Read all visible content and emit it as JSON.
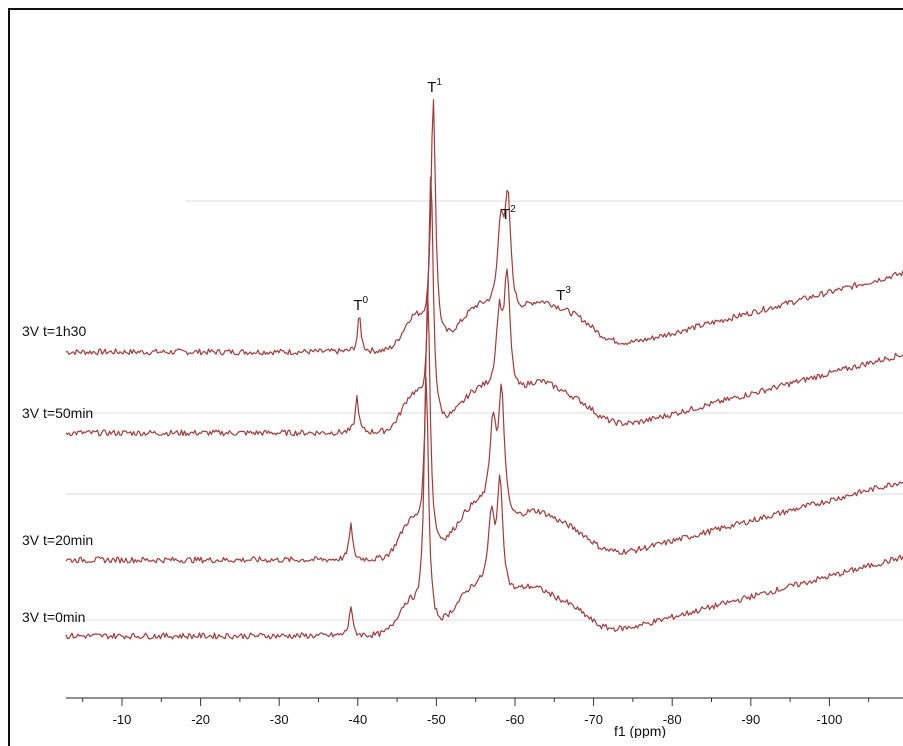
{
  "chart_data": {
    "type": "line",
    "title": "",
    "xlabel": "f1 (ppm)",
    "ylabel": "",
    "xlim": [
      -3,
      -108
    ],
    "x_ticks": [
      -10,
      -20,
      -30,
      -40,
      -50,
      -60,
      -70,
      -80,
      -90,
      -100
    ],
    "x_tick_labels": [
      "-10",
      "-20",
      "-30",
      "-40",
      "-50",
      "-60",
      "-70",
      "-80",
      "-90",
      "-100"
    ],
    "grid": false,
    "legend": "none",
    "line_color": "#a03c3c",
    "series": [
      {
        "name": "3V t=1h30",
        "shift": -0.9,
        "baseline_start": 0.0,
        "baseline_slope": 0.0,
        "peaks": [
          {
            "x": -40.2,
            "h": 36,
            "w": 0.25
          },
          {
            "x": -49.6,
            "h": 245,
            "w": 0.35
          },
          {
            "x": -58.2,
            "h": 90,
            "w": 0.5
          },
          {
            "x": -59.1,
            "h": 110,
            "w": 0.45
          }
        ],
        "humps": [
          {
            "x": -47.2,
            "h": 32,
            "w": 1.4
          },
          {
            "x": -55.5,
            "h": 42,
            "w": 2.5
          },
          {
            "x": -62.5,
            "h": 38,
            "w": 2.5
          },
          {
            "x": -67.5,
            "h": 32,
            "w": 3.0
          }
        ]
      },
      {
        "name": "3V t=50min",
        "shift": -0.6,
        "baseline_start": 0.0,
        "baseline_slope": 0.0,
        "peaks": [
          {
            "x": -39.9,
            "h": 36,
            "w": 0.25
          },
          {
            "x": -49.3,
            "h": 250,
            "w": 0.35
          },
          {
            "x": -58.0,
            "h": 78,
            "w": 0.5
          },
          {
            "x": -59.0,
            "h": 118,
            "w": 0.45
          }
        ],
        "humps": [
          {
            "x": -47.0,
            "h": 34,
            "w": 1.4
          },
          {
            "x": -55.5,
            "h": 40,
            "w": 2.5
          },
          {
            "x": -62.5,
            "h": 40,
            "w": 2.5
          },
          {
            "x": -67.5,
            "h": 30,
            "w": 3.0
          }
        ]
      },
      {
        "name": "3V t=20min",
        "shift": -0.3,
        "baseline_start": 0.0,
        "baseline_slope": 0.0,
        "peaks": [
          {
            "x": -39.1,
            "h": 36,
            "w": 0.25
          },
          {
            "x": -48.9,
            "h": 260,
            "w": 0.35
          },
          {
            "x": -57.2,
            "h": 92,
            "w": 0.5
          },
          {
            "x": -58.3,
            "h": 125,
            "w": 0.45
          }
        ],
        "humps": [
          {
            "x": -46.7,
            "h": 34,
            "w": 1.4
          },
          {
            "x": -55.0,
            "h": 50,
            "w": 2.5
          },
          {
            "x": -62.0,
            "h": 38,
            "w": 2.5
          },
          {
            "x": -67.0,
            "h": 28,
            "w": 3.0
          }
        ]
      },
      {
        "name": "3V t=0min",
        "shift": 0.0,
        "baseline_start": 0.0,
        "baseline_slope": 0.0,
        "peaks": [
          {
            "x": -39.1,
            "h": 30,
            "w": 0.25
          },
          {
            "x": -48.7,
            "h": 250,
            "w": 0.35
          },
          {
            "x": -57.0,
            "h": 72,
            "w": 0.5
          },
          {
            "x": -58.1,
            "h": 110,
            "w": 0.45
          }
        ],
        "humps": [
          {
            "x": -46.5,
            "h": 30,
            "w": 1.4
          },
          {
            "x": -55.0,
            "h": 45,
            "w": 2.5
          },
          {
            "x": -61.5,
            "h": 38,
            "w": 2.5
          },
          {
            "x": -66.5,
            "h": 28,
            "w": 3.0
          }
        ]
      }
    ],
    "annotations": [
      {
        "text": "T",
        "sup": "0",
        "x": -40.2
      },
      {
        "text": "T",
        "sup": "1",
        "x": -49.6
      },
      {
        "text": "T",
        "sup": "2",
        "x": -59.0
      },
      {
        "text": "T",
        "sup": "3",
        "x": -66.0
      }
    ]
  }
}
